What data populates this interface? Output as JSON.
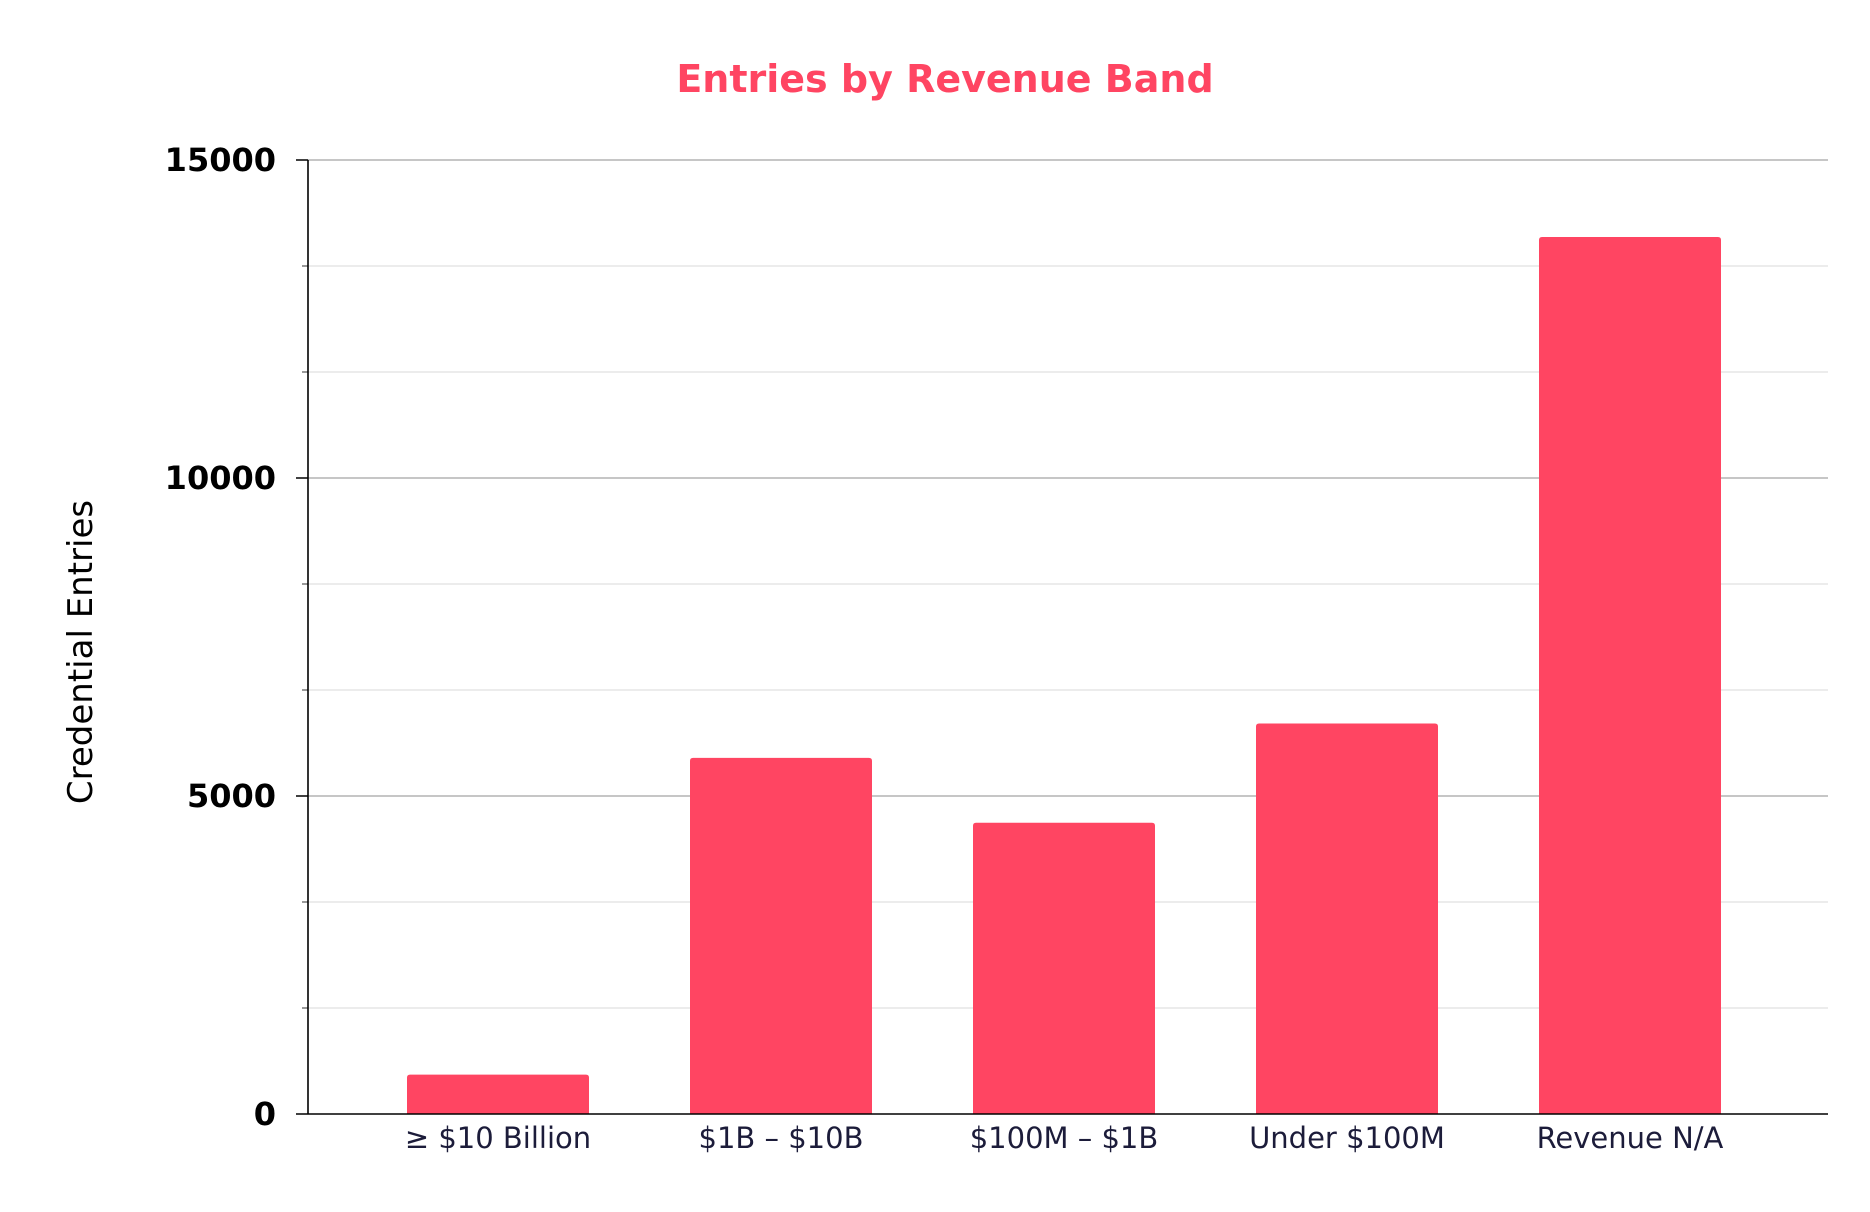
{
  "chart_data": {
    "type": "bar",
    "title": "Entries by Revenue Band",
    "xlabel": "",
    "ylabel": "Credential Entries",
    "categories": [
      "≥ $10 Billion",
      "$1B – $10B",
      "$100M – $1B",
      "Under $100M",
      "Revenue N/A"
    ],
    "values": [
      620,
      5600,
      4580,
      6140,
      13790
    ],
    "ylim": [
      0,
      15000
    ],
    "yticks": [
      0,
      5000,
      10000,
      15000
    ],
    "minor_tick_step": 1666.67,
    "grid": true,
    "legend": "none",
    "colors": {
      "bar": "#ff4562",
      "title": "#ff4562",
      "major_grid": "#b3b3b3",
      "minor_grid": "#e0e0e0",
      "axis": "#000000",
      "x_tick_text": "#1c1c3a"
    }
  }
}
